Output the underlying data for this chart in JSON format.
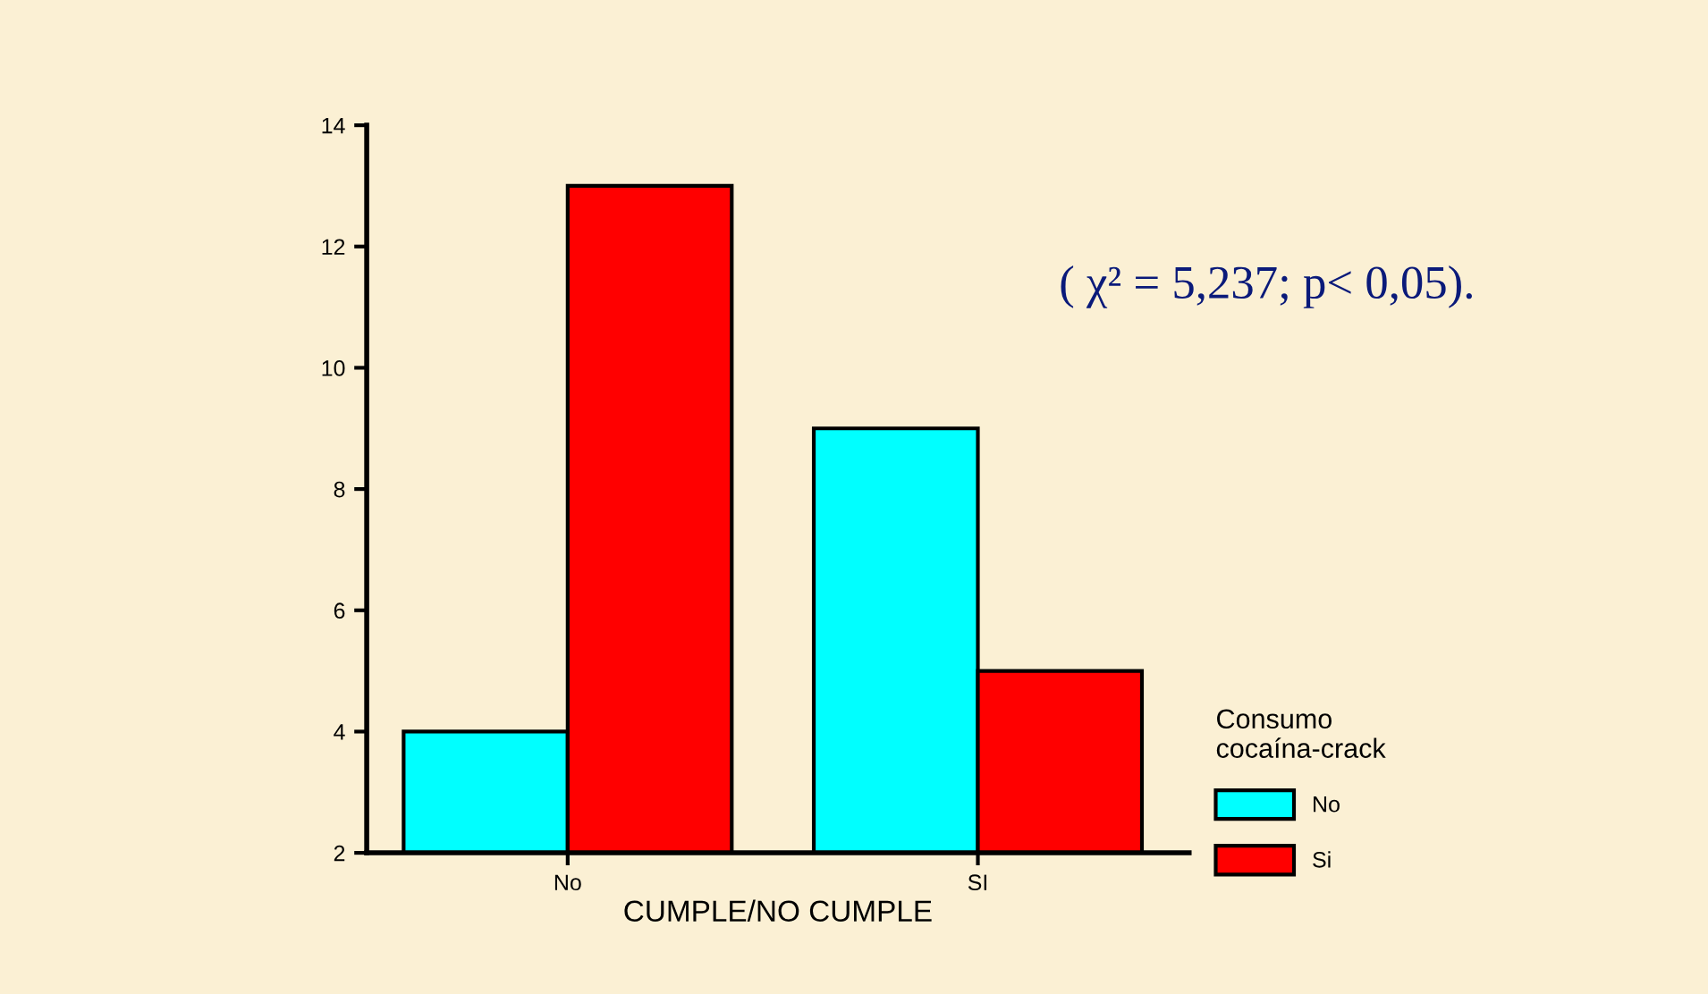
{
  "chart_data": {
    "type": "bar",
    "xlabel": "CUMPLE/NO CUMPLE",
    "categories": [
      "No",
      "SI"
    ],
    "series": [
      {
        "name": "No",
        "color": "#00ffff",
        "values": [
          4,
          9
        ]
      },
      {
        "name": "Si",
        "color": "#ff0000",
        "values": [
          13,
          5
        ]
      }
    ],
    "ylim": [
      2,
      14
    ],
    "yticks": [
      2,
      4,
      6,
      8,
      10,
      12,
      14
    ],
    "grid": false,
    "legend": "right",
    "legend_title": "Consumo\ncocaína-crack",
    "annotations": [
      "( χ² = 5,237; p< 0,05)."
    ]
  }
}
